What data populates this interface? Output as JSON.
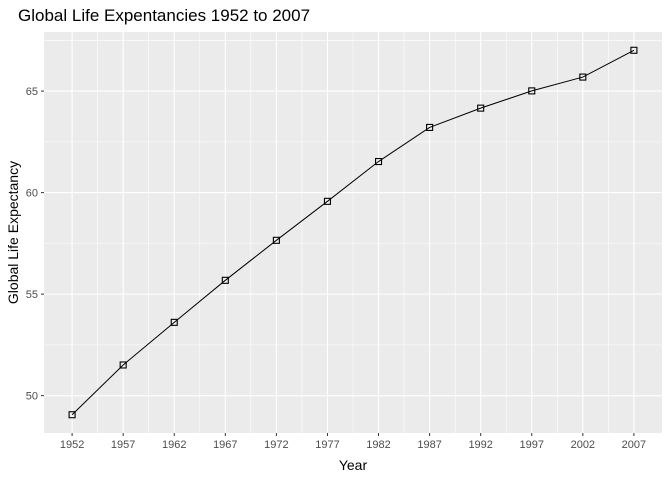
{
  "chart_data": {
    "type": "line",
    "title": "Global Life Expentancies 1952 to 2007",
    "xlabel": "Year",
    "ylabel": "Global Life Expectancy",
    "x": [
      1952,
      1957,
      1962,
      1967,
      1972,
      1977,
      1982,
      1987,
      1992,
      1997,
      2002,
      2007
    ],
    "series": [
      {
        "values": [
          49.06,
          51.51,
          53.61,
          55.68,
          57.65,
          59.57,
          61.53,
          63.21,
          64.16,
          65.01,
          65.69,
          67.01
        ]
      }
    ],
    "x_ticks": [
      "1952",
      "1957",
      "1962",
      "1967",
      "1972",
      "1977",
      "1982",
      "1987",
      "1992",
      "1997",
      "2002",
      "2007"
    ],
    "y_ticks": [
      "50",
      "55",
      "60",
      "65"
    ],
    "xlim": [
      1949.25,
      2009.75
    ],
    "ylim": [
      48.16,
      67.91
    ],
    "grid": true,
    "marker": "square-open",
    "colors": {
      "panel": "#ebebeb",
      "grid": "#ffffff",
      "line": "#000000"
    }
  }
}
